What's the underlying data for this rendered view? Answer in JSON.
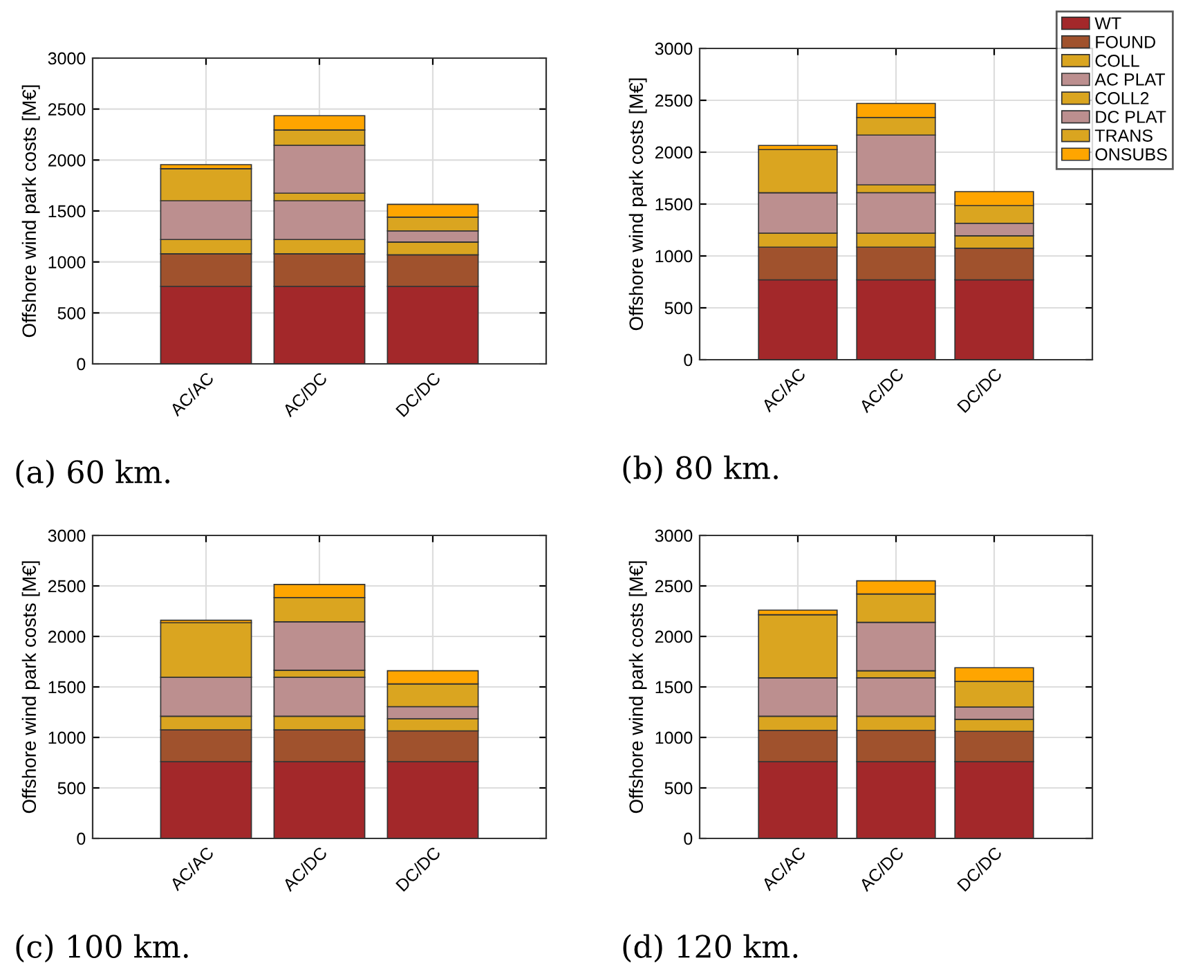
{
  "chart_data": [
    {
      "type": "bar",
      "stacked": true,
      "ylabel": "Offshore wind park costs [M€]",
      "annotations": [
        "(a) 60 km."
      ],
      "categories": [
        "AC/AC",
        "AC/DC",
        "DC/DC"
      ],
      "ylim": [
        0,
        3000
      ],
      "yticks": [
        0,
        500,
        1000,
        1500,
        2000,
        2500,
        3000
      ],
      "grid": true,
      "legend": false,
      "series": [
        {
          "color": "#a3282a",
          "values": [
            760,
            760,
            760
          ]
        },
        {
          "color": "#a0522d",
          "values": [
            320,
            320,
            310
          ]
        },
        {
          "color": "#daa520",
          "values": [
            140,
            140,
            125
          ]
        },
        {
          "color": "#bc8f8f",
          "values": [
            380,
            380,
            0
          ]
        },
        {
          "color": "#daa520",
          "values": [
            0,
            75,
            0
          ]
        },
        {
          "color": "#bc8f8f",
          "values": [
            0,
            470,
            110
          ]
        },
        {
          "color": "#daa520",
          "values": [
            315,
            150,
            135
          ]
        },
        {
          "color": "#ffa500",
          "values": [
            40,
            140,
            125
          ]
        }
      ]
    },
    {
      "type": "bar",
      "stacked": true,
      "ylabel": "Offshore wind park costs [M€]",
      "annotations": [
        "(b) 80 km."
      ],
      "categories": [
        "AC/AC",
        "AC/DC",
        "DC/DC"
      ],
      "ylim": [
        0,
        3000
      ],
      "yticks": [
        0,
        500,
        1000,
        1500,
        2000,
        2500,
        3000
      ],
      "grid": true,
      "legend": "top right",
      "series": [
        {
          "name": "WT",
          "color": "#a3282a",
          "values": [
            770,
            770,
            770
          ]
        },
        {
          "name": "FOUND",
          "color": "#a0522d",
          "values": [
            315,
            315,
            305
          ]
        },
        {
          "name": "COLL",
          "color": "#daa520",
          "values": [
            135,
            135,
            120
          ]
        },
        {
          "name": "AC PLAT",
          "color": "#bc8f8f",
          "values": [
            390,
            390,
            0
          ]
        },
        {
          "name": "COLL2",
          "color": "#daa520",
          "values": [
            0,
            75,
            0
          ]
        },
        {
          "name": "DC PLAT",
          "color": "#bc8f8f",
          "values": [
            0,
            480,
            120
          ]
        },
        {
          "name": "TRANS",
          "color": "#daa520",
          "values": [
            415,
            170,
            170
          ]
        },
        {
          "name": "ONSUBS",
          "color": "#ffa500",
          "values": [
            40,
            135,
            135
          ]
        }
      ]
    },
    {
      "type": "bar",
      "stacked": true,
      "ylabel": "Offshore wind park costs [M€]",
      "annotations": [
        "(c) 100 km."
      ],
      "categories": [
        "AC/AC",
        "AC/DC",
        "DC/DC"
      ],
      "ylim": [
        0,
        3000
      ],
      "yticks": [
        0,
        500,
        1000,
        1500,
        2000,
        2500,
        3000
      ],
      "grid": true,
      "legend": false,
      "series": [
        {
          "color": "#a3282a",
          "values": [
            760,
            760,
            760
          ]
        },
        {
          "color": "#a0522d",
          "values": [
            315,
            315,
            305
          ]
        },
        {
          "color": "#daa520",
          "values": [
            135,
            135,
            120
          ]
        },
        {
          "color": "#bc8f8f",
          "values": [
            385,
            385,
            0
          ]
        },
        {
          "color": "#daa520",
          "values": [
            0,
            70,
            0
          ]
        },
        {
          "color": "#bc8f8f",
          "values": [
            0,
            480,
            120
          ]
        },
        {
          "color": "#daa520",
          "values": [
            540,
            240,
            225
          ]
        },
        {
          "color": "#ffa500",
          "values": [
            25,
            130,
            130
          ]
        }
      ]
    },
    {
      "type": "bar",
      "stacked": true,
      "ylabel": "Offshore wind park costs [M€]",
      "annotations": [
        "(d) 120 km."
      ],
      "categories": [
        "AC/AC",
        "AC/DC",
        "DC/DC"
      ],
      "ylim": [
        0,
        3000
      ],
      "yticks": [
        0,
        500,
        1000,
        1500,
        2000,
        2500,
        3000
      ],
      "grid": true,
      "legend": false,
      "series": [
        {
          "color": "#a3282a",
          "values": [
            760,
            760,
            760
          ]
        },
        {
          "color": "#a0522d",
          "values": [
            310,
            310,
            300
          ]
        },
        {
          "color": "#daa520",
          "values": [
            140,
            140,
            120
          ]
        },
        {
          "color": "#bc8f8f",
          "values": [
            380,
            380,
            0
          ]
        },
        {
          "color": "#daa520",
          "values": [
            0,
            70,
            0
          ]
        },
        {
          "color": "#bc8f8f",
          "values": [
            0,
            480,
            120
          ]
        },
        {
          "color": "#daa520",
          "values": [
            625,
            280,
            255
          ]
        },
        {
          "color": "#ffa500",
          "values": [
            45,
            130,
            135
          ]
        }
      ]
    }
  ]
}
